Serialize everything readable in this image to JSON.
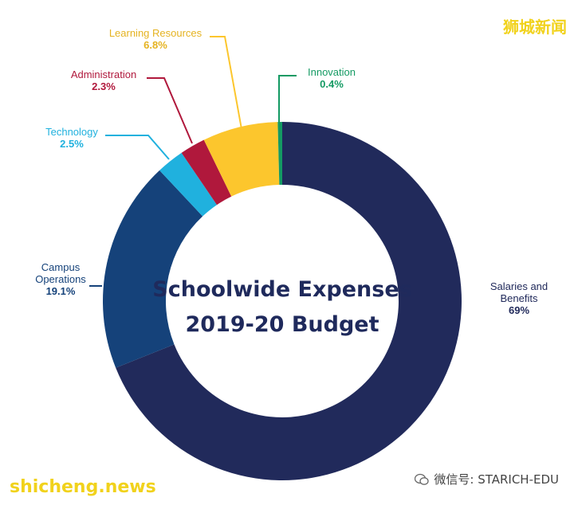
{
  "chart_data": {
    "type": "pie",
    "variant": "donut",
    "title_lines": [
      "Schoolwide Expenses",
      "2019-20 Budget"
    ],
    "slices": [
      {
        "label": "Salaries and Benefits",
        "label_lines": [
          "Salaries and",
          "Benefits"
        ],
        "pct_text": "69%",
        "value": 69,
        "color": "#212a5b"
      },
      {
        "label": "Campus Operations",
        "label_lines": [
          "Campus",
          "Operations"
        ],
        "pct_text": "19.1%",
        "value": 19.1,
        "color": "#15427a"
      },
      {
        "label": "Technology",
        "label_lines": [
          "Technology"
        ],
        "pct_text": "2.5%",
        "value": 2.5,
        "color": "#20b1de"
      },
      {
        "label": "Administration",
        "label_lines": [
          "Administration"
        ],
        "pct_text": "2.3%",
        "value": 2.3,
        "color": "#b0183c"
      },
      {
        "label": "Learning Resources",
        "label_lines": [
          "Learning Resources"
        ],
        "pct_text": "6.8%",
        "value": 6.8,
        "color": "#fcc62d"
      },
      {
        "label": "Innovation",
        "label_lines": [
          "Innovation"
        ],
        "pct_text": "0.4%",
        "value": 0.4,
        "color": "#149a63"
      }
    ]
  },
  "watermarks": {
    "chinese_title": "狮城新闻",
    "site": "shicheng.news",
    "wechat": "微信号: STARICH-EDU"
  }
}
